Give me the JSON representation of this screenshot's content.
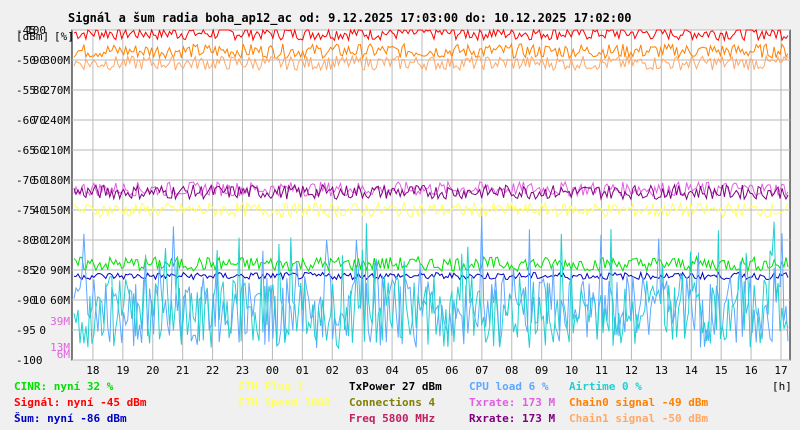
{
  "chart_data": {
    "type": "line",
    "title": "Signál a šum radia boha_ap12_ac od: 9.12.2025 17:03:00 do: 10.12.2025 17:02:00",
    "units": {
      "dbm": "[dBm]",
      "pct": "[%]",
      "hours": "[h]"
    },
    "y_dbm_ticks": [
      "-45",
      "-50",
      "-55",
      "-60",
      "-65",
      "-70",
      "-75",
      "-80",
      "-85",
      "-90",
      "-95",
      "-100"
    ],
    "y_pct_ticks": [
      "100",
      "90",
      "80",
      "70",
      "60",
      "50",
      "40",
      "30",
      "20",
      "10",
      "0"
    ],
    "y_rate_ticks": [
      "300M",
      "270M",
      "240M",
      "210M",
      "180M",
      "150M",
      "120M",
      "90M",
      "60M"
    ],
    "y_rate_colored": [
      {
        "label": "39M",
        "value": 39,
        "color": "#e060e0"
      },
      {
        "label": "13M",
        "value": 13,
        "color": "#e060e0"
      },
      {
        "label": "6M",
        "value": 6,
        "color": "#e060e0"
      }
    ],
    "x_ticks": [
      "18",
      "19",
      "20",
      "21",
      "22",
      "23",
      "00",
      "01",
      "02",
      "03",
      "04",
      "05",
      "06",
      "07",
      "08",
      "09",
      "10",
      "11",
      "12",
      "13",
      "14",
      "15",
      "16",
      "17"
    ],
    "ylim_dbm": [
      -100,
      -45
    ],
    "grid": true,
    "series": [
      {
        "name": "Signál",
        "color": "#ff0000",
        "level": -45.5
      },
      {
        "name": "Chain0 signal",
        "color": "#ff8000",
        "level": -48.5
      },
      {
        "name": "Chain1 signal",
        "color": "#ffa868",
        "level": -50.5
      },
      {
        "name": "Txrate",
        "color": "#e060e0",
        "level": -71.5
      },
      {
        "name": "Rxrate",
        "color": "#800080",
        "level": -72
      },
      {
        "name": "ETH Speed",
        "color": "#ffff60",
        "level": -75
      },
      {
        "name": "CINR",
        "color": "#00e000",
        "level": -84
      },
      {
        "name": "Šum",
        "color": "#0000c0",
        "level": -86
      },
      {
        "name": "CPU load",
        "color": "#60a8ff",
        "level": -92
      },
      {
        "name": "Airtime",
        "color": "#20d0d0",
        "level": -92
      }
    ]
  },
  "legend": [
    {
      "text": "CINR: nyní 32 %",
      "color": "#00e000"
    },
    {
      "text": "Signál: nyní -45 dBm",
      "color": "#ff0000"
    },
    {
      "text": "Šum: nyní -86 dBm",
      "color": "#0000c0"
    },
    {
      "text": "ETH Plug 1",
      "color": "#ffff60"
    },
    {
      "text": "ETH Speed 1000",
      "color": "#ffff60"
    },
    {
      "text": "TxPower 27 dBm",
      "color": "#000000"
    },
    {
      "text": "Connections 4",
      "color": "#808000"
    },
    {
      "text": "Freq 5800 MHz",
      "color": "#c02060"
    },
    {
      "text": "CPU load 6 %",
      "color": "#60a8ff"
    },
    {
      "text": "Txrate: 173 M",
      "color": "#e060e0"
    },
    {
      "text": "Rxrate: 173 M",
      "color": "#800080"
    },
    {
      "text": "Airtime 0 %",
      "color": "#20d0d0"
    },
    {
      "text": "Chain0 signal -49 dBm",
      "color": "#ff8000"
    },
    {
      "text": "Chain1 signal -50 dBm",
      "color": "#ffa868"
    }
  ]
}
